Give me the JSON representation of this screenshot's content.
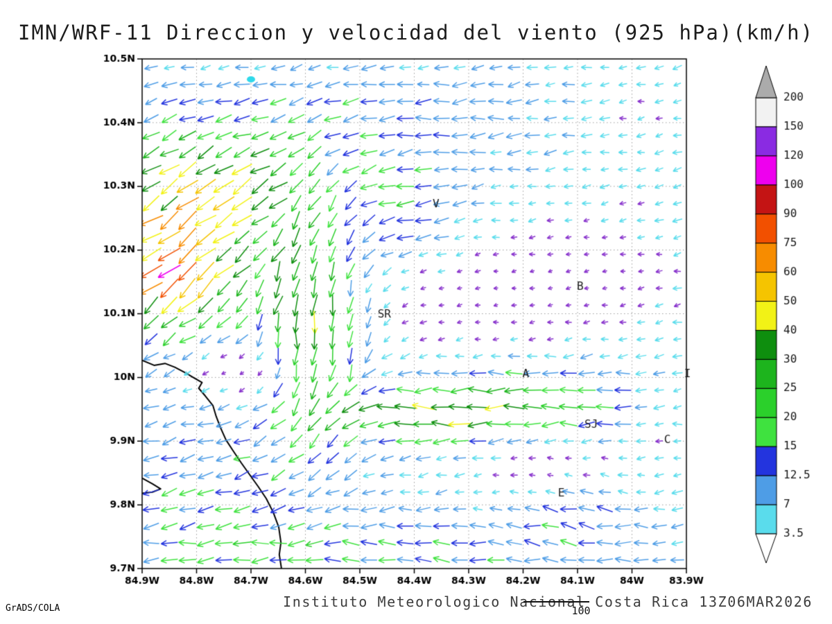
{
  "title": "IMN/WRF-11 Direccion y velocidad del viento (925 hPa)(km/h)",
  "credit": "GrADS/COLA",
  "footer": "Instituto Meteorologico Nacional Costa Rica  13Z06MAR2026",
  "reference_vector": {
    "label": "100",
    "value_km_h": 100
  },
  "style": {
    "grid_color": "#9a9a9a",
    "frame_color": "#000000",
    "coast_color": "#000000",
    "axis_label_color": "#000000",
    "colorbar_label_color": "#141414",
    "station_label_color": "#1a1a1a",
    "water_marker_color": "#2fd9ea"
  },
  "chart_data": {
    "type": "vector_field",
    "title": "IMN/WRF-11 Direccion y velocidad del viento (925 hPa)(km/h)",
    "units": "km/h",
    "level": "925 hPa",
    "valid_time": "13Z06MAR2026",
    "x_axis": {
      "ticks_deg_west": [
        84.9,
        84.8,
        84.7,
        84.6,
        84.5,
        84.4,
        84.3,
        84.2,
        84.1,
        84.0,
        83.9
      ],
      "tick_labels": [
        "84.9W",
        "84.8W",
        "84.7W",
        "84.6W",
        "84.5W",
        "84.4W",
        "84.3W",
        "84.2W",
        "84.1W",
        "84W",
        "83.9W"
      ]
    },
    "y_axis": {
      "ticks_deg_north": [
        10.5,
        10.4,
        10.3,
        10.2,
        10.1,
        10.0,
        9.9,
        9.8,
        9.7
      ],
      "tick_labels": [
        "10.5N",
        "10.4N",
        "10.3N",
        "10.2N",
        "10.1N",
        "10N",
        "9.9N",
        "9.8N",
        "9.7N"
      ]
    },
    "colorbar": {
      "levels": [
        3.5,
        7,
        12.5,
        15,
        20,
        25,
        30,
        40,
        50,
        60,
        75,
        90,
        100,
        120,
        150,
        200
      ],
      "labels": [
        "3.5",
        "7",
        "12.5",
        "15",
        "20",
        "25",
        "30",
        "40",
        "50",
        "60",
        "75",
        "90",
        "100",
        "120",
        "150",
        "200"
      ],
      "segment_colors": [
        "#5adcec",
        "#4e9de6",
        "#2334de",
        "#3fe23f",
        "#2bd02b",
        "#1db41d",
        "#0e8e0e",
        "#f2f216",
        "#f5c400",
        "#f78c00",
        "#f25000",
        "#c41414",
        "#ee00ee",
        "#8a2be2",
        "#f2f2f2"
      ],
      "top_cap_color": "#ababab",
      "bottom_cap_color": "#ffffff",
      "under_arrow_color": "#8833cc"
    },
    "stations": [
      {
        "label": "V",
        "lonw": 84.36,
        "lat": 10.272
      },
      {
        "label": "B",
        "lonw": 84.095,
        "lat": 10.142
      },
      {
        "label": "SR",
        "lonw": 84.455,
        "lat": 10.098
      },
      {
        "label": "A",
        "lonw": 84.195,
        "lat": 10.005
      },
      {
        "label": "SJ",
        "lonw": 84.075,
        "lat": 9.925
      },
      {
        "label": "C",
        "lonw": 83.935,
        "lat": 9.902
      },
      {
        "label": "E",
        "lonw": 84.13,
        "lat": 9.818
      },
      {
        "label": "I",
        "lonw": 83.898,
        "lat": 10.005
      }
    ],
    "coastlines": [
      [
        [
          84.9,
          10.027
        ],
        [
          84.878,
          10.019
        ],
        [
          84.858,
          10.022
        ],
        [
          84.84,
          10.016
        ],
        [
          84.82,
          10.007
        ],
        [
          84.804,
          9.999
        ],
        [
          84.79,
          9.992
        ],
        [
          84.796,
          9.983
        ],
        [
          84.784,
          9.971
        ],
        [
          84.77,
          9.956
        ],
        [
          84.764,
          9.939
        ],
        [
          84.756,
          9.921
        ],
        [
          84.746,
          9.902
        ],
        [
          84.733,
          9.885
        ],
        [
          84.718,
          9.866
        ],
        [
          84.703,
          9.848
        ],
        [
          84.687,
          9.829
        ],
        [
          84.672,
          9.81
        ],
        [
          84.659,
          9.788
        ],
        [
          84.649,
          9.765
        ],
        [
          84.645,
          9.741
        ],
        [
          84.648,
          9.722
        ],
        [
          84.644,
          9.7
        ]
      ],
      [
        [
          84.9,
          9.842
        ],
        [
          84.881,
          9.833
        ],
        [
          84.866,
          9.825
        ],
        [
          84.881,
          9.82
        ],
        [
          84.9,
          9.818
        ]
      ]
    ],
    "water_body_marker": {
      "lonw": 84.7,
      "lat": 10.468
    },
    "wind_field": {
      "grid": {
        "cols": 30,
        "rows": 30
      },
      "base": {
        "u": -6,
        "v": -1.2
      },
      "features": [
        {
          "lonw": 84.82,
          "lat": 10.2,
          "sx": 0.1,
          "sy": 0.1,
          "du": -28,
          "dv": -26
        },
        {
          "lonw": 84.85,
          "lat": 10.16,
          "sx": 0.045,
          "sy": 0.045,
          "du": -30,
          "dv": -28
        },
        {
          "lonw": 84.78,
          "lat": 10.3,
          "sx": 0.12,
          "sy": 0.06,
          "du": -20,
          "dv": -10
        },
        {
          "lonw": 84.58,
          "lat": 10.12,
          "sx": 0.07,
          "sy": 0.14,
          "du": 4,
          "dv": -22
        },
        {
          "lonw": 84.6,
          "lat": 10.05,
          "sx": 0.05,
          "sy": 0.08,
          "du": 0,
          "dv": -26
        },
        {
          "lonw": 84.33,
          "lat": 9.94,
          "sx": 0.2,
          "sy": 0.03,
          "du": -26,
          "dv": 0
        },
        {
          "lonw": 84.35,
          "lat": 9.945,
          "sx": 0.12,
          "sy": 0.02,
          "du": -14,
          "dv": 2
        },
        {
          "lonw": 84.2,
          "lat": 9.99,
          "sx": 0.15,
          "sy": 0.03,
          "du": -12,
          "dv": 0
        },
        {
          "lonw": 84.75,
          "lat": 9.8,
          "sx": 0.15,
          "sy": 0.1,
          "du": -8,
          "dv": -3
        },
        {
          "lonw": 84.4,
          "lat": 9.73,
          "sx": 0.3,
          "sy": 0.04,
          "du": -9,
          "dv": 3
        },
        {
          "lonw": 84.1,
          "lat": 9.81,
          "sx": 0.06,
          "sy": 0.04,
          "du": -16,
          "dv": 6
        },
        {
          "lonw": 84.5,
          "lat": 10.4,
          "sx": 0.2,
          "sy": 0.05,
          "du": -8,
          "dv": 0
        },
        {
          "lonw": 84.42,
          "lat": 10.26,
          "sx": 0.08,
          "sy": 0.05,
          "du": -14,
          "dv": -2
        }
      ],
      "calm_zones": [
        {
          "lonw": 84.73,
          "lat": 10.01,
          "sx": 0.1,
          "sy": 0.05,
          "f": 0.12
        },
        {
          "lonw": 84.28,
          "lat": 10.13,
          "sx": 0.16,
          "sy": 0.09,
          "f": 0.28
        },
        {
          "lonw": 84.05,
          "lat": 10.17,
          "sx": 0.12,
          "sy": 0.08,
          "f": 0.35
        },
        {
          "lonw": 84.13,
          "lat": 9.85,
          "sx": 0.12,
          "sy": 0.05,
          "f": 0.2
        },
        {
          "lonw": 83.93,
          "lat": 9.95,
          "sx": 0.06,
          "sy": 0.06,
          "f": 0.5
        },
        {
          "lonw": 83.95,
          "lat": 10.42,
          "sx": 0.1,
          "sy": 0.08,
          "f": 0.6
        }
      ],
      "jitter": {
        "dir_rad": 0.5,
        "mag_frac": 0.25
      }
    }
  }
}
